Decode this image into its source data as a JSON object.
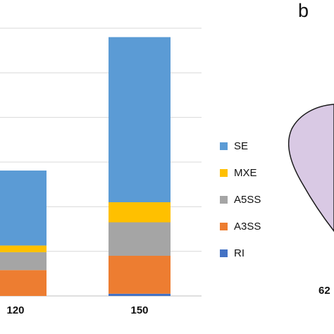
{
  "chart_data": {
    "type": "bar",
    "stacked": true,
    "categories": [
      "120",
      "150"
    ],
    "series": [
      {
        "name": "RI",
        "color": "#4472C4",
        "values": [
          0,
          5
        ]
      },
      {
        "name": "A3SS",
        "color": "#ED7D31",
        "values": [
          58,
          85
        ]
      },
      {
        "name": "A5SS",
        "color": "#A5A5A5",
        "values": [
          40,
          75
        ]
      },
      {
        "name": "MXE",
        "color": "#FFC000",
        "values": [
          15,
          45
        ]
      },
      {
        "name": "SE",
        "color": "#5B9BD5",
        "values": [
          168,
          370
        ]
      }
    ],
    "legend_order": [
      "SE",
      "MXE",
      "A5SS",
      "A3SS",
      "RI"
    ],
    "legend_position": "right",
    "ylim": [
      0,
      600
    ],
    "grid": true
  },
  "panel_b": {
    "label": "b",
    "number": "62",
    "fill_color": "#D9C9E4",
    "stroke_color": "#1a1a1a"
  }
}
